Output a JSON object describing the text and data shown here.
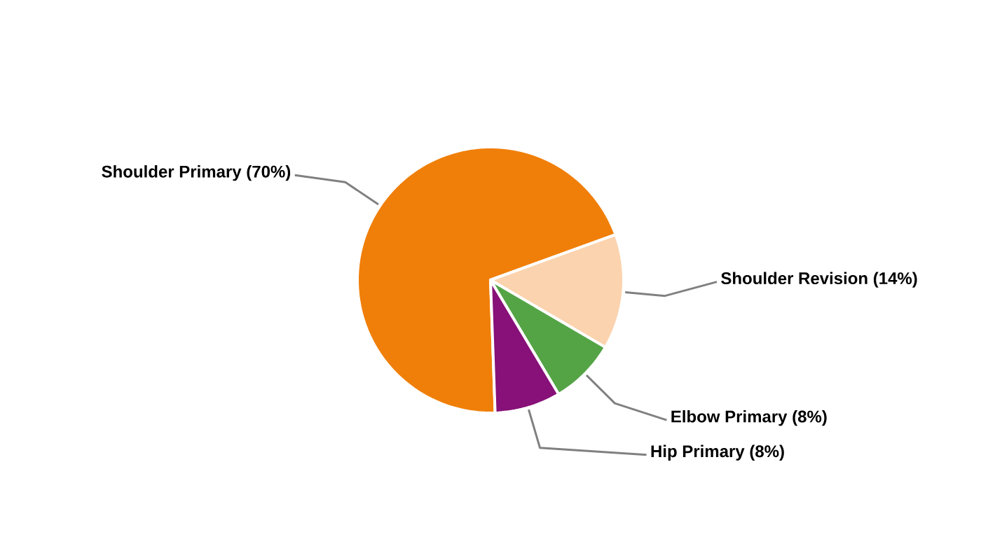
{
  "chart_data": {
    "type": "pie",
    "categories": [
      "Shoulder Primary (70%)",
      "Shoulder Revision (14%)",
      "Elbow Primary (8%)",
      "Hip Primary (8%)"
    ],
    "values": [
      70,
      14,
      8,
      8
    ],
    "colors": [
      "#f07f09",
      "#fbd3ae",
      "#54a446",
      "#871178"
    ]
  }
}
